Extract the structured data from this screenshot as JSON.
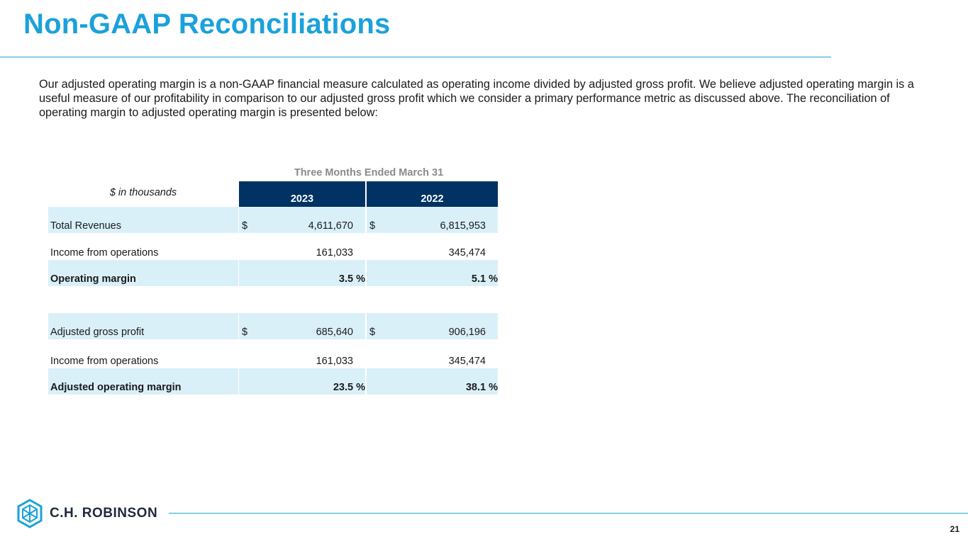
{
  "title": "Non-GAAP Reconciliations",
  "intro": "Our adjusted operating margin is a non-GAAP financial measure calculated as operating income divided by adjusted gross profit. We believe adjusted operating margin is a useful measure of our profitability in comparison to our adjusted gross profit which we consider a primary performance metric as discussed above. The reconciliation of operating margin to adjusted operating margin is presented below:",
  "table": {
    "period_label": "Three Months Ended March 31",
    "units_label": "$ in thousands",
    "columns": [
      "2023",
      "2022"
    ],
    "rows": [
      {
        "label": "Total Revenues",
        "cur1": "$",
        "v1": "4,611,670",
        "cur2": "$",
        "v2": "6,815,953"
      },
      {
        "label": "Income from operations",
        "v1": "161,033",
        "v2": "345,474"
      },
      {
        "label": "Operating margin",
        "v1": "3.5 %",
        "v2": "5.1 %"
      },
      {
        "label": "Adjusted gross profit",
        "cur1": "$",
        "v1": "685,640",
        "cur2": "$",
        "v2": "906,196"
      },
      {
        "label": "Income from operations",
        "v1": "161,033",
        "v2": "345,474"
      },
      {
        "label": "Adjusted operating margin",
        "v1": "23.5 %",
        "v2": "38.1 %"
      }
    ]
  },
  "footer": {
    "logo_text": "C.H. ROBINSON",
    "page_number": "21"
  },
  "colors": {
    "accent": "#1ba1db",
    "header_fill": "#003263",
    "row_shade": "#daf0f9"
  }
}
